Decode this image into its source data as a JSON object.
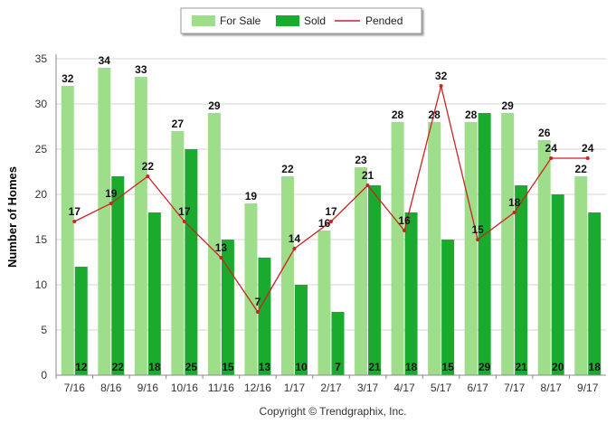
{
  "chart_data": {
    "type": "bar",
    "categories": [
      "7/16",
      "8/16",
      "9/16",
      "10/16",
      "11/16",
      "12/16",
      "1/17",
      "2/17",
      "3/17",
      "4/17",
      "5/17",
      "6/17",
      "7/17",
      "8/17",
      "9/17"
    ],
    "series": [
      {
        "name": "For Sale",
        "type": "bar",
        "color": "#9ede8a",
        "values": [
          32,
          34,
          33,
          27,
          29,
          19,
          22,
          16,
          23,
          28,
          28,
          28,
          29,
          26,
          22
        ]
      },
      {
        "name": "Sold",
        "type": "bar",
        "color": "#1aab2e",
        "values": [
          12,
          22,
          18,
          25,
          15,
          13,
          10,
          7,
          21,
          18,
          15,
          29,
          21,
          20,
          18
        ]
      },
      {
        "name": "Pended",
        "type": "line",
        "color": "#cc2222",
        "values": [
          17,
          19,
          22,
          17,
          13,
          7,
          14,
          17,
          21,
          16,
          32,
          15,
          18,
          24,
          24
        ]
      }
    ],
    "ylabel": "Number of Homes",
    "ylim": [
      0,
      35
    ],
    "yticks": [
      0,
      5,
      10,
      15,
      20,
      25,
      30,
      35
    ],
    "grid": true,
    "legend_position": "top-center"
  },
  "footer": {
    "copyright": "Copyright © Trendgraphix, Inc."
  }
}
